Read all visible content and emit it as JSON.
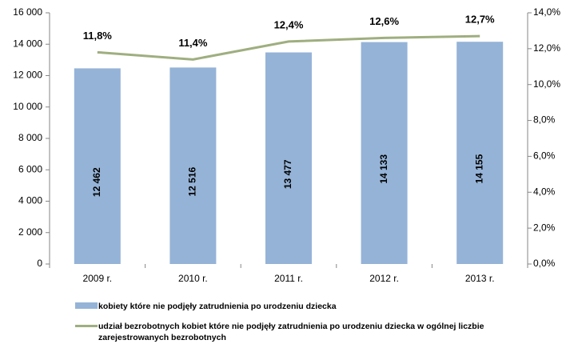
{
  "chart_data": {
    "type": "bar",
    "categories": [
      "2009 r.",
      "2010 r.",
      "2011 r.",
      "2012 r.",
      "2013 r."
    ],
    "series": [
      {
        "name": "kobiety które nie podjęły zatrudnienia po urodzeniu dziecka",
        "type": "bar",
        "color": "#95b3d7",
        "values": [
          12462,
          12516,
          13477,
          14133,
          14155
        ],
        "value_labels": [
          "12 462",
          "12 516",
          "13 477",
          "14 133",
          "14 155"
        ]
      },
      {
        "name": "udział bezrobotnych kobiet które nie podjęły zatrudnienia po urodzeniu dziecka w ogólnej liczbie zarejestrowanych bezrobotnych",
        "type": "line",
        "axis": "y2",
        "color": "#9fae7f",
        "values": [
          11.8,
          11.4,
          12.4,
          12.6,
          12.7
        ],
        "value_labels": [
          "11,8%",
          "11,4%",
          "12,4%",
          "12,6%",
          "12,7%"
        ]
      }
    ],
    "ylim": [
      0,
      16000
    ],
    "yticks": [
      0,
      {
        "value": 2000,
        "label": "2 000"
      },
      {
        "value": 4000,
        "label": "4 000"
      },
      {
        "value": 6000,
        "label": "6 000"
      },
      {
        "value": 8000,
        "label": "8 000"
      },
      {
        "value": 10000,
        "label": "10 000"
      },
      {
        "value": 12000,
        "label": "12 000"
      },
      {
        "value": 14000,
        "label": "14 000"
      },
      {
        "value": 16000,
        "label": "16 000"
      }
    ],
    "y2lim": [
      0,
      14
    ],
    "y2ticks": [
      {
        "value": 0,
        "label": "0,0%"
      },
      {
        "value": 2,
        "label": "2,0%"
      },
      {
        "value": 4,
        "label": "4,0%"
      },
      {
        "value": 6,
        "label": "6,0%"
      },
      {
        "value": 8,
        "label": "8,0%"
      },
      {
        "value": 10,
        "label": "10,0%"
      },
      {
        "value": 12,
        "label": "12,0%"
      },
      {
        "value": 14,
        "label": "14,0%"
      }
    ],
    "grid": false,
    "legend": "bottom"
  }
}
